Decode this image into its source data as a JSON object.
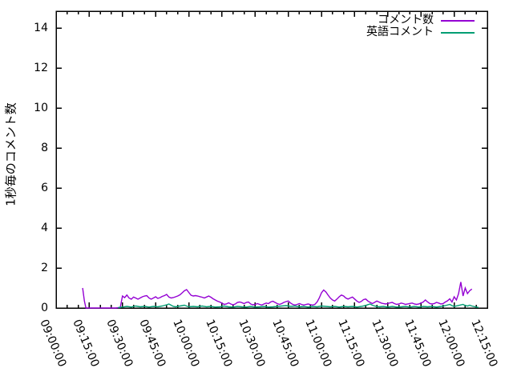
{
  "chart_data": {
    "type": "line",
    "title": "",
    "xlabel": "",
    "ylabel": "1秒毎のコメント数",
    "x_ticks": [
      "09:00:00",
      "09:15:00",
      "09:30:00",
      "09:45:00",
      "10:00:00",
      "10:15:00",
      "10:30:00",
      "10:45:00",
      "11:00:00",
      "11:15:00",
      "11:30:00",
      "11:45:00",
      "12:00:00",
      "12:15:00"
    ],
    "x_major_interval_min": 15,
    "x_minor_interval_min": 5,
    "x_range_minutes": [
      0,
      195
    ],
    "y_ticks": [
      0,
      2,
      4,
      6,
      8,
      10,
      12,
      14
    ],
    "ylim": [
      0,
      14.84
    ],
    "grid": false,
    "legend_position": "top-right-inside",
    "background": "#ffffff",
    "axis_color": "#000000",
    "series": [
      {
        "name": "コメント数",
        "color": "#9400d3",
        "points": [
          [
            12,
            1.0
          ],
          [
            12.8,
            0.35
          ],
          [
            13.5,
            0
          ],
          [
            15,
            0
          ],
          [
            17,
            0
          ],
          [
            19,
            0
          ],
          [
            21,
            0
          ],
          [
            23,
            0
          ],
          [
            25,
            0
          ],
          [
            27,
            0
          ],
          [
            29,
            0.02
          ],
          [
            30,
            0.6
          ],
          [
            31,
            0.52
          ],
          [
            32,
            0.65
          ],
          [
            33,
            0.5
          ],
          [
            34,
            0.44
          ],
          [
            35,
            0.55
          ],
          [
            36,
            0.5
          ],
          [
            37,
            0.44
          ],
          [
            38,
            0.5
          ],
          [
            39,
            0.56
          ],
          [
            40,
            0.6
          ],
          [
            41,
            0.62
          ],
          [
            42,
            0.5
          ],
          [
            43,
            0.44
          ],
          [
            44,
            0.5
          ],
          [
            45,
            0.56
          ],
          [
            46,
            0.48
          ],
          [
            47,
            0.52
          ],
          [
            48,
            0.58
          ],
          [
            49,
            0.62
          ],
          [
            50,
            0.68
          ],
          [
            51,
            0.55
          ],
          [
            52,
            0.5
          ],
          [
            53,
            0.52
          ],
          [
            54,
            0.56
          ],
          [
            55,
            0.6
          ],
          [
            56,
            0.66
          ],
          [
            57,
            0.76
          ],
          [
            58,
            0.86
          ],
          [
            59,
            0.92
          ],
          [
            60,
            0.78
          ],
          [
            61,
            0.64
          ],
          [
            62,
            0.6
          ],
          [
            63,
            0.62
          ],
          [
            64,
            0.6
          ],
          [
            65,
            0.57
          ],
          [
            66,
            0.54
          ],
          [
            67,
            0.5
          ],
          [
            68,
            0.55
          ],
          [
            69,
            0.6
          ],
          [
            70,
            0.54
          ],
          [
            71,
            0.46
          ],
          [
            72,
            0.4
          ],
          [
            73,
            0.34
          ],
          [
            74,
            0.3
          ],
          [
            75,
            0.24
          ],
          [
            76,
            0.18
          ],
          [
            77,
            0.2
          ],
          [
            78,
            0.26
          ],
          [
            79,
            0.2
          ],
          [
            80,
            0.16
          ],
          [
            81,
            0.2
          ],
          [
            82,
            0.28
          ],
          [
            83,
            0.3
          ],
          [
            84,
            0.27
          ],
          [
            85,
            0.22
          ],
          [
            86,
            0.28
          ],
          [
            87,
            0.3
          ],
          [
            88,
            0.2
          ],
          [
            89,
            0.16
          ],
          [
            90,
            0.18
          ],
          [
            91,
            0.22
          ],
          [
            92,
            0.18
          ],
          [
            93,
            0.15
          ],
          [
            94,
            0.2
          ],
          [
            95,
            0.25
          ],
          [
            96,
            0.22
          ],
          [
            97,
            0.3
          ],
          [
            98,
            0.34
          ],
          [
            99,
            0.28
          ],
          [
            100,
            0.22
          ],
          [
            101,
            0.18
          ],
          [
            102,
            0.22
          ],
          [
            103,
            0.28
          ],
          [
            104,
            0.32
          ],
          [
            105,
            0.35
          ],
          [
            106,
            0.25
          ],
          [
            107,
            0.18
          ],
          [
            108,
            0.15
          ],
          [
            109,
            0.18
          ],
          [
            110,
            0.22
          ],
          [
            111,
            0.18
          ],
          [
            112,
            0.15
          ],
          [
            113,
            0.18
          ],
          [
            114,
            0.2
          ],
          [
            115,
            0.17
          ],
          [
            116,
            0.15
          ],
          [
            117,
            0.18
          ],
          [
            118,
            0.3
          ],
          [
            119,
            0.5
          ],
          [
            120,
            0.76
          ],
          [
            121,
            0.9
          ],
          [
            122,
            0.8
          ],
          [
            123,
            0.64
          ],
          [
            124,
            0.5
          ],
          [
            125,
            0.4
          ],
          [
            126,
            0.35
          ],
          [
            127,
            0.45
          ],
          [
            128,
            0.56
          ],
          [
            129,
            0.65
          ],
          [
            130,
            0.6
          ],
          [
            131,
            0.5
          ],
          [
            132,
            0.45
          ],
          [
            133,
            0.5
          ],
          [
            134,
            0.55
          ],
          [
            135,
            0.45
          ],
          [
            136,
            0.35
          ],
          [
            137,
            0.28
          ],
          [
            138,
            0.33
          ],
          [
            139,
            0.42
          ],
          [
            140,
            0.45
          ],
          [
            141,
            0.35
          ],
          [
            142,
            0.28
          ],
          [
            143,
            0.22
          ],
          [
            144,
            0.28
          ],
          [
            145,
            0.35
          ],
          [
            146,
            0.3
          ],
          [
            147,
            0.25
          ],
          [
            148,
            0.22
          ],
          [
            149,
            0.2
          ],
          [
            150,
            0.22
          ],
          [
            151,
            0.26
          ],
          [
            152,
            0.28
          ],
          [
            153,
            0.22
          ],
          [
            154,
            0.18
          ],
          [
            155,
            0.2
          ],
          [
            156,
            0.25
          ],
          [
            157,
            0.22
          ],
          [
            158,
            0.18
          ],
          [
            159,
            0.2
          ],
          [
            160,
            0.23
          ],
          [
            161,
            0.25
          ],
          [
            162,
            0.2
          ],
          [
            163,
            0.18
          ],
          [
            164,
            0.2
          ],
          [
            165,
            0.25
          ],
          [
            166,
            0.3
          ],
          [
            167,
            0.4
          ],
          [
            168,
            0.3
          ],
          [
            169,
            0.22
          ],
          [
            170,
            0.2
          ],
          [
            171,
            0.22
          ],
          [
            172,
            0.28
          ],
          [
            173,
            0.25
          ],
          [
            174,
            0.2
          ],
          [
            175,
            0.22
          ],
          [
            176,
            0.3
          ],
          [
            177,
            0.36
          ],
          [
            178,
            0.46
          ],
          [
            179,
            0.3
          ],
          [
            180,
            0.56
          ],
          [
            181,
            0.4
          ],
          [
            182,
            0.72
          ],
          [
            183,
            1.3
          ],
          [
            184,
            0.6
          ],
          [
            185,
            1.0
          ],
          [
            186,
            0.72
          ],
          [
            187,
            0.86
          ],
          [
            188,
            0.95
          ]
        ]
      },
      {
        "name": "英語コメント",
        "color": "#009e73",
        "points": [
          [
            28,
            0.02
          ],
          [
            30,
            0.05
          ],
          [
            32,
            0.08
          ],
          [
            34,
            0.05
          ],
          [
            36,
            0.1
          ],
          [
            38,
            0.06
          ],
          [
            40,
            0.08
          ],
          [
            42,
            0.05
          ],
          [
            44,
            0.08
          ],
          [
            46,
            0.06
          ],
          [
            48,
            0.1
          ],
          [
            50,
            0.16
          ],
          [
            51,
            0.2
          ],
          [
            52,
            0.14
          ],
          [
            53,
            0.08
          ],
          [
            54,
            0.06
          ],
          [
            56,
            0.1
          ],
          [
            58,
            0.14
          ],
          [
            59,
            0.1
          ],
          [
            60,
            0.06
          ],
          [
            62,
            0.08
          ],
          [
            64,
            0.06
          ],
          [
            66,
            0.1
          ],
          [
            68,
            0.06
          ],
          [
            70,
            0.08
          ],
          [
            72,
            0.05
          ],
          [
            74,
            0.06
          ],
          [
            76,
            0.1
          ],
          [
            78,
            0.06
          ],
          [
            80,
            0.05
          ],
          [
            82,
            0.08
          ],
          [
            84,
            0.06
          ],
          [
            86,
            0.05
          ],
          [
            88,
            0.08
          ],
          [
            90,
            0.05
          ],
          [
            92,
            0.06
          ],
          [
            94,
            0.08
          ],
          [
            96,
            0.05
          ],
          [
            98,
            0.06
          ],
          [
            100,
            0.08
          ],
          [
            102,
            0.1
          ],
          [
            104,
            0.12
          ],
          [
            105,
            0.1
          ],
          [
            106,
            0.08
          ],
          [
            108,
            0.1
          ],
          [
            110,
            0.06
          ],
          [
            112,
            0.08
          ],
          [
            114,
            0.05
          ],
          [
            116,
            0.08
          ],
          [
            118,
            0.06
          ],
          [
            120,
            0.1
          ],
          [
            122,
            0.08
          ],
          [
            124,
            0.06
          ],
          [
            126,
            0.08
          ],
          [
            128,
            0.05
          ],
          [
            130,
            0.08
          ],
          [
            132,
            0.06
          ],
          [
            134,
            0.08
          ],
          [
            136,
            0.05
          ],
          [
            138,
            0.08
          ],
          [
            140,
            0.13
          ],
          [
            141,
            0.17
          ],
          [
            142,
            0.2
          ],
          [
            143,
            0.14
          ],
          [
            144,
            0.1
          ],
          [
            146,
            0.06
          ],
          [
            148,
            0.08
          ],
          [
            150,
            0.05
          ],
          [
            152,
            0.08
          ],
          [
            154,
            0.05
          ],
          [
            156,
            0.06
          ],
          [
            158,
            0.08
          ],
          [
            160,
            0.05
          ],
          [
            162,
            0.08
          ],
          [
            164,
            0.05
          ],
          [
            166,
            0.08
          ],
          [
            168,
            0.06
          ],
          [
            170,
            0.08
          ],
          [
            172,
            0.05
          ],
          [
            174,
            0.08
          ],
          [
            176,
            0.12
          ],
          [
            178,
            0.18
          ],
          [
            179,
            0.12
          ],
          [
            180,
            0.08
          ],
          [
            182,
            0.13
          ],
          [
            184,
            0.18
          ],
          [
            185,
            0.12
          ],
          [
            186,
            0.1
          ],
          [
            187,
            0.14
          ],
          [
            188,
            0.1
          ],
          [
            190,
            0.05
          ],
          [
            191,
            0.03
          ]
        ]
      }
    ]
  }
}
